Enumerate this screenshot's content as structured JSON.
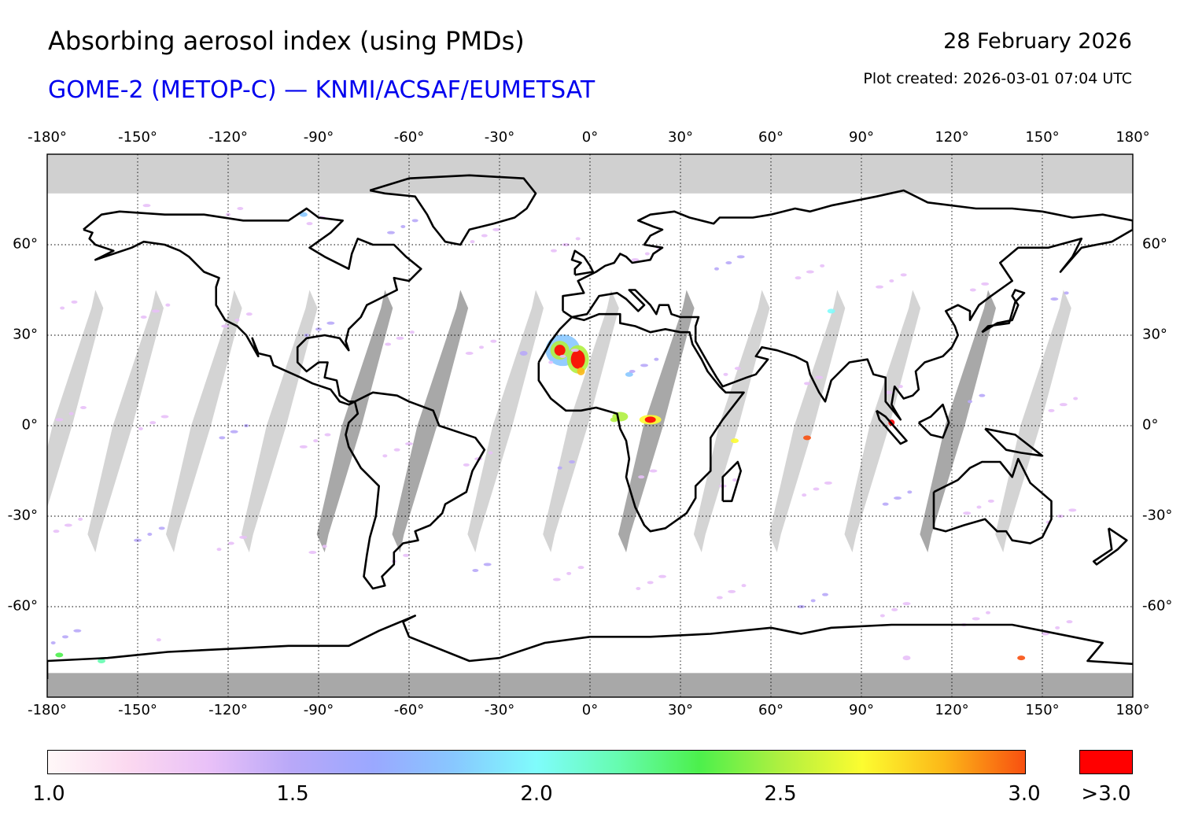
{
  "header": {
    "title": "Absorbing aerosol index (using PMDs)",
    "subtitle": "GOME-2 (METOP-C) — KNMI/ACSAF/EUMETSAT",
    "date": "28 February 2026",
    "created": "Plot created: 2026-03-01 07:04 UTC"
  },
  "axes": {
    "lon_labels": [
      "-180°",
      "-150°",
      "-120°",
      "-90°",
      "-60°",
      "-30°",
      "0°",
      "30°",
      "60°",
      "90°",
      "120°",
      "150°",
      "180°"
    ],
    "lat_labels": [
      "60°",
      "30°",
      "0°",
      "-30°",
      "-60°"
    ]
  },
  "colorbar": {
    "labels": [
      "1.0",
      "1.5",
      "2.0",
      "2.5",
      "3.0"
    ],
    "over_label": ">3.0",
    "colors": [
      "#fff8f8",
      "#fbd8f0",
      "#e8c0f8",
      "#b8a8f8",
      "#9aa8ff",
      "#88c8ff",
      "#7ffcfc",
      "#66fcb0",
      "#4cf04c",
      "#b0f040",
      "#fcfc30",
      "#fcb818",
      "#f85010"
    ],
    "over_color": "#ff0000"
  },
  "colors": {
    "polar_nodata": "#d0d0d0",
    "antarctic_nodata": "#a8a8a8",
    "swath_gap": "#d4d4d4",
    "swath_gap_over_land": "#a8a8a8",
    "coastline": "#000000",
    "grid": "#000000"
  },
  "chart_data": {
    "type": "map",
    "title": "Absorbing aerosol index (using PMDs)",
    "subtitle": "GOME-2 (METOP-C) — KNMI/ACSAF/EUMETSAT",
    "date": "28 February 2026",
    "projection": "equirectangular",
    "lon_range": [
      -180,
      180
    ],
    "lat_range": [
      -90,
      90
    ],
    "grid_lon": [
      -180,
      -150,
      -120,
      -90,
      -60,
      -30,
      0,
      30,
      60,
      90,
      120,
      150,
      180
    ],
    "grid_lat": [
      -60,
      -30,
      0,
      30,
      60
    ],
    "value_range": [
      1.0,
      3.0
    ],
    "over_label": ">3.0",
    "swath_gaps_lon_at_equator": [
      -175,
      -155,
      -129,
      -104,
      -79,
      -54,
      -29,
      -4,
      21,
      46,
      71,
      96,
      121,
      146
    ],
    "high_aai_regions": [
      {
        "name": "Sahara (Western Sahara / Mauritania)",
        "lat": [
          15,
          30
        ],
        "lon": [
          -13,
          0
        ],
        "level": ">3.0"
      },
      {
        "name": "Gulf of Guinea / Central Africa",
        "lat": [
          0,
          5
        ],
        "lon": [
          8,
          22
        ],
        "level": ">3.0"
      },
      {
        "name": "Sumatra",
        "lat": [
          -1,
          3
        ],
        "lon": [
          99,
          101
        ],
        "level": ">3.0"
      }
    ]
  }
}
